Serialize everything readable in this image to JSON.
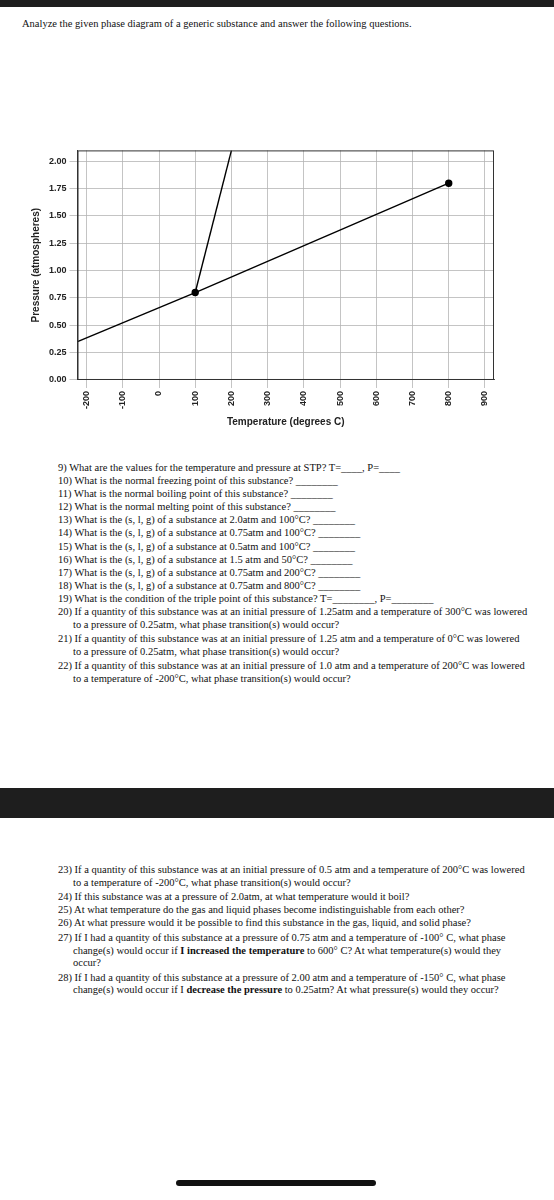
{
  "intro": "Analyze the given phase diagram of a generic substance and answer the following questions.",
  "chart_data": {
    "type": "scatter",
    "x_label": "Temperature (degrees C)",
    "y_label": "Pressure (atmospheres)",
    "xlim": [
      -225,
      925
    ],
    "xticks": [
      -200,
      -100,
      0,
      100,
      200,
      300,
      400,
      500,
      600,
      700,
      800,
      900
    ],
    "ylim": [
      0,
      2.1
    ],
    "yticks": [
      {
        "value": 0,
        "label": "0.00"
      },
      {
        "value": 0.25,
        "label": "0.25"
      },
      {
        "value": 0.5,
        "label": "0.50"
      },
      {
        "value": 0.75,
        "label": "0.75"
      },
      {
        "value": 1,
        "label": "1.00"
      },
      {
        "value": 1.25,
        "label": "1.25"
      },
      {
        "value": 1.5,
        "label": "1.50"
      },
      {
        "value": 1.75,
        "label": "1.75"
      },
      {
        "value": 2,
        "label": "2.00"
      }
    ],
    "grid": true,
    "series": [
      {
        "color": "#000000",
        "marker": "none",
        "line_style": "solid",
        "x": [
          -225,
          100
        ],
        "values": [
          0.35,
          0.8
        ]
      },
      {
        "color": "#000000",
        "marker": "none",
        "line_style": "solid",
        "x": [
          100,
          200
        ],
        "values": [
          0.8,
          2.1
        ]
      },
      {
        "color": "#000000",
        "marker": "none",
        "line_style": "solid",
        "x": [
          100,
          800
        ],
        "values": [
          0.8,
          1.8
        ]
      },
      {
        "color": "#000000",
        "marker": "circle",
        "line_style": "none",
        "x": [
          100,
          800
        ],
        "values": [
          0.8,
          1.8
        ]
      }
    ]
  },
  "questions_part1": [
    [
      {
        "text": "9) What are the values for the temperature and pressure at STP? T=____, P=____"
      }
    ],
    [
      {
        "text": "10) What is the normal freezing point of this substance? ________"
      }
    ],
    [
      {
        "text": "11) What is the normal boiling point of this substance? ________"
      }
    ],
    [
      {
        "text": "12) What is the normal melting point of this substance? ________"
      }
    ],
    [
      {
        "text": "13) What is the (s, l, g) of a substance at 2.0atm and 100°C? ________"
      }
    ],
    [
      {
        "text": "14) What is the (s, l, g) of a substance at 0.75atm and 100°C? ________"
      }
    ],
    [
      {
        "text": "15) What is the (s, l, g) of a substance at 0.5atm and 100°C? ________"
      }
    ],
    [
      {
        "text": "16) What is the (s, l, g) of a substance at 1.5 atm and 50°C? ________"
      }
    ],
    [
      {
        "text": "17) What is the (s, l, g) of a substance at 0.75atm and 200°C? ________"
      }
    ],
    [
      {
        "text": "18) What is the (s, l, g) of a substance at 0.75atm and 800°C? ________"
      }
    ],
    [
      {
        "text": "19) What is the condition of the triple point of this substance? T=________, P=________"
      }
    ],
    [
      {
        "text": "20) If a quantity of this substance was at an initial pressure of 1.25atm and a temperature of 300°C was lowered to a pressure of 0.25atm, what phase transition(s) would occur?"
      }
    ],
    [
      {
        "text": "21) If a quantity of this substance was at an initial pressure of 1.25 atm and a temperature of 0°C was lowered to a pressure of 0.25atm, what phase transition(s) would occur?"
      }
    ],
    [
      {
        "text": "22) If a quantity of this substance was at an initial pressure of 1.0 atm and a temperature of 200°C was lowered to a temperature of -200°C, what phase transition(s) would occur?"
      }
    ]
  ],
  "questions_part2": [
    [
      {
        "text": "23) If a quantity of this substance was at an initial pressure of 0.5 atm and a temperature of 200°C was lowered to a temperature of -200°C, what phase transition(s) would occur?"
      }
    ],
    [
      {
        "text": "24) If this substance was at a pressure of 2.0atm, at what temperature would it boil?"
      }
    ],
    [
      {
        "text": "25) At what temperature do the gas and liquid phases become indistinguishable from each other?"
      }
    ],
    [
      {
        "text": "26) At what pressure would it be possible to find this substance in the gas, liquid, and solid phase?"
      }
    ],
    [
      {
        "text": "27) If I had a quantity of this substance at a pressure of 0.75 atm and a temperature of -100° C, what phase change(s) would occur if "
      },
      {
        "text": "I increased the temperature",
        "bold": true
      },
      {
        "text": " to 600° C? At what temperature(s) would they occur?"
      }
    ],
    [
      {
        "text": "28) If I had a quantity of this substance at a pressure of 2.00 atm and a temperature of -150° C, what phase change(s) would occur if I "
      },
      {
        "text": "decrease the pressure",
        "bold": true
      },
      {
        "text": " to 0.25atm? At what pressure(s) would they occur?"
      }
    ]
  ]
}
